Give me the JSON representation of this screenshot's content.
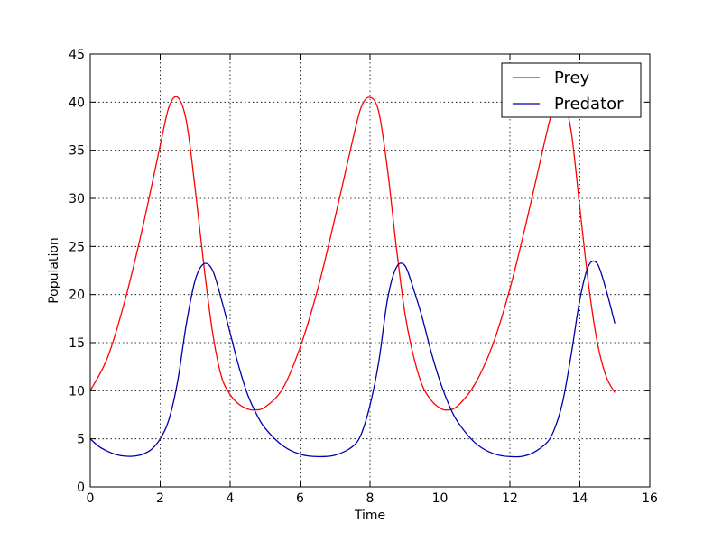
{
  "chart_data": {
    "type": "line",
    "title": "",
    "xlabel": "Time",
    "ylabel": "Population",
    "xlim": [
      0,
      16
    ],
    "ylim": [
      0,
      45
    ],
    "xticks": [
      0,
      2,
      4,
      6,
      8,
      10,
      12,
      14,
      16
    ],
    "yticks": [
      0,
      5,
      10,
      15,
      20,
      25,
      30,
      35,
      40,
      45
    ],
    "grid": true,
    "legend_position": "top-right",
    "series": [
      {
        "name": "Prey",
        "color": "#ff0000",
        "x": [
          0,
          0.5,
          1,
          1.5,
          2,
          2.25,
          2.5,
          2.75,
          3,
          3.25,
          3.5,
          3.75,
          4,
          4.25,
          4.5,
          4.7,
          5,
          5.5,
          6,
          6.5,
          7,
          7.5,
          7.75,
          8,
          8.25,
          8.5,
          8.75,
          9,
          9.25,
          9.5,
          9.75,
          10,
          10.2,
          10.5,
          11,
          11.5,
          12,
          12.5,
          13,
          13.25,
          13.5,
          13.75,
          14,
          14.25,
          14.5,
          14.75,
          15
        ],
        "values": [
          10,
          13.5,
          19.5,
          27,
          35.5,
          39.5,
          40.5,
          38,
          31,
          23,
          16,
          11.5,
          9.6,
          8.6,
          8.1,
          8.0,
          8.3,
          10.2,
          14.5,
          20.5,
          28,
          36,
          39.5,
          40.5,
          39,
          33,
          25,
          18,
          13.5,
          10.5,
          9.0,
          8.2,
          8.0,
          8.4,
          10.7,
          14.7,
          20.6,
          28,
          36,
          39.5,
          40.5,
          37,
          29,
          21,
          15,
          11.5,
          9.8
        ]
      },
      {
        "name": "Predator",
        "color": "#0000aa",
        "x": [
          0,
          0.25,
          0.5,
          0.75,
          1,
          1.25,
          1.5,
          1.75,
          2,
          2.25,
          2.5,
          2.75,
          3,
          3.25,
          3.5,
          3.75,
          4,
          4.25,
          4.5,
          4.75,
          5,
          5.5,
          6,
          6.5,
          7,
          7.5,
          7.75,
          8,
          8.25,
          8.5,
          8.75,
          9,
          9.25,
          9.5,
          9.75,
          10,
          10.25,
          10.5,
          11,
          11.5,
          12,
          12.5,
          13,
          13.25,
          13.5,
          13.75,
          14,
          14.25,
          14.5,
          14.75,
          15
        ],
        "values": [
          5,
          4.2,
          3.7,
          3.35,
          3.2,
          3.2,
          3.4,
          3.9,
          5,
          7,
          11,
          17,
          21.5,
          23.2,
          22.5,
          19.5,
          16,
          12.5,
          9.6,
          7.6,
          6.1,
          4.3,
          3.4,
          3.15,
          3.3,
          4.2,
          5.5,
          8.5,
          13,
          19.5,
          22.8,
          23.0,
          20.5,
          17.5,
          14,
          11,
          8.6,
          6.8,
          4.6,
          3.5,
          3.15,
          3.3,
          4.4,
          5.8,
          8.7,
          13.7,
          19.5,
          23.0,
          23.2,
          20.5,
          17
        ]
      }
    ]
  }
}
